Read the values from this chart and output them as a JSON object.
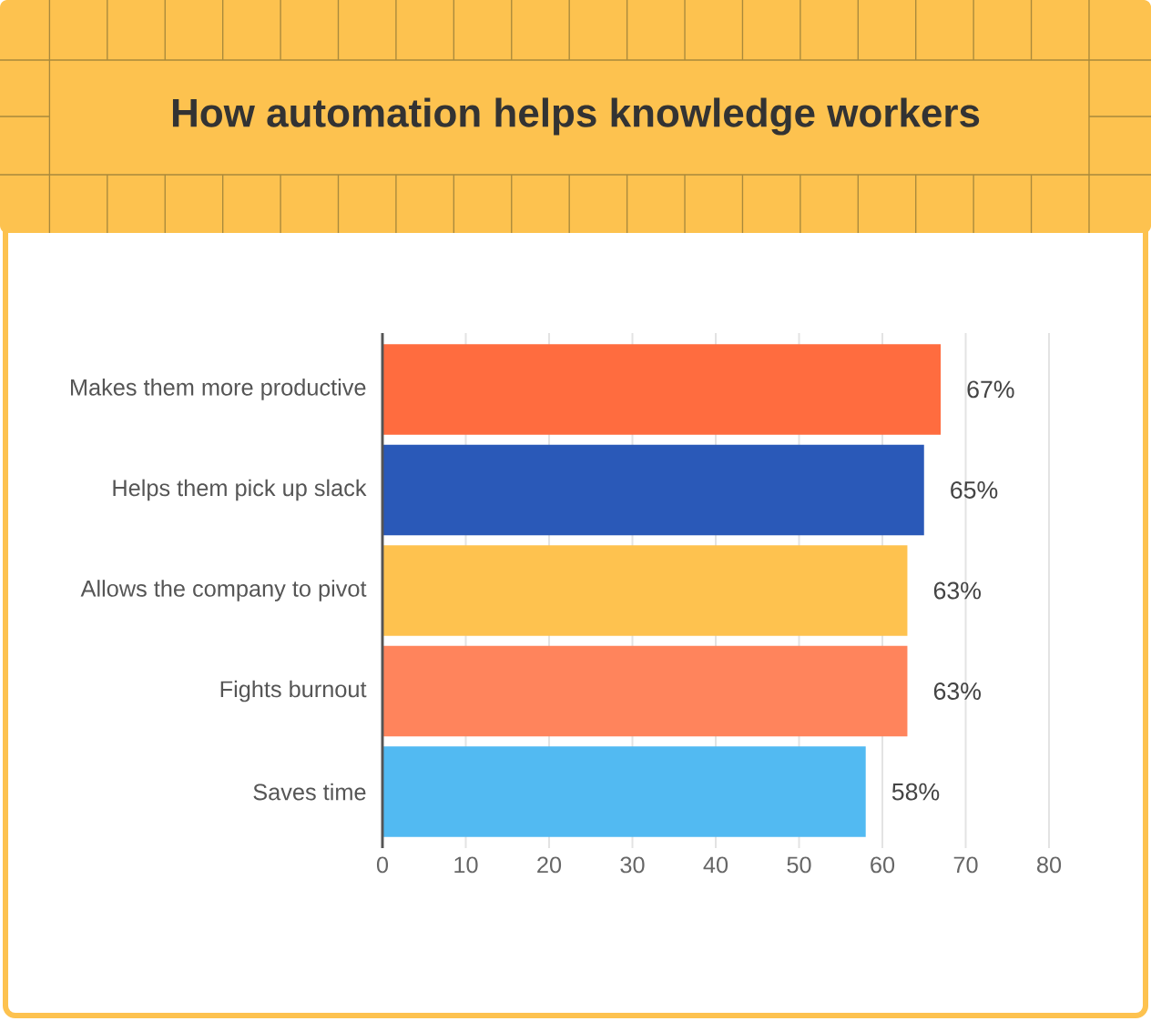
{
  "chart_data": {
    "type": "bar",
    "orientation": "horizontal",
    "title": "How automation helps knowledge workers",
    "categories": [
      "Makes them more productive",
      "Helps them pick up slack",
      "Allows the company to pivot",
      "Fights burnout",
      "Saves time"
    ],
    "values": [
      67,
      65,
      63,
      63,
      58
    ],
    "colors": [
      "#ff6c3f",
      "#2a59b8",
      "#fec24f",
      "#ff845c",
      "#52baf2"
    ],
    "value_labels": [
      "67%",
      "65%",
      "63%",
      "63%",
      "58%"
    ],
    "xlim": [
      0,
      80
    ],
    "xticks": [
      0,
      10,
      20,
      30,
      40,
      50,
      60,
      70,
      80
    ],
    "grid": "x"
  }
}
